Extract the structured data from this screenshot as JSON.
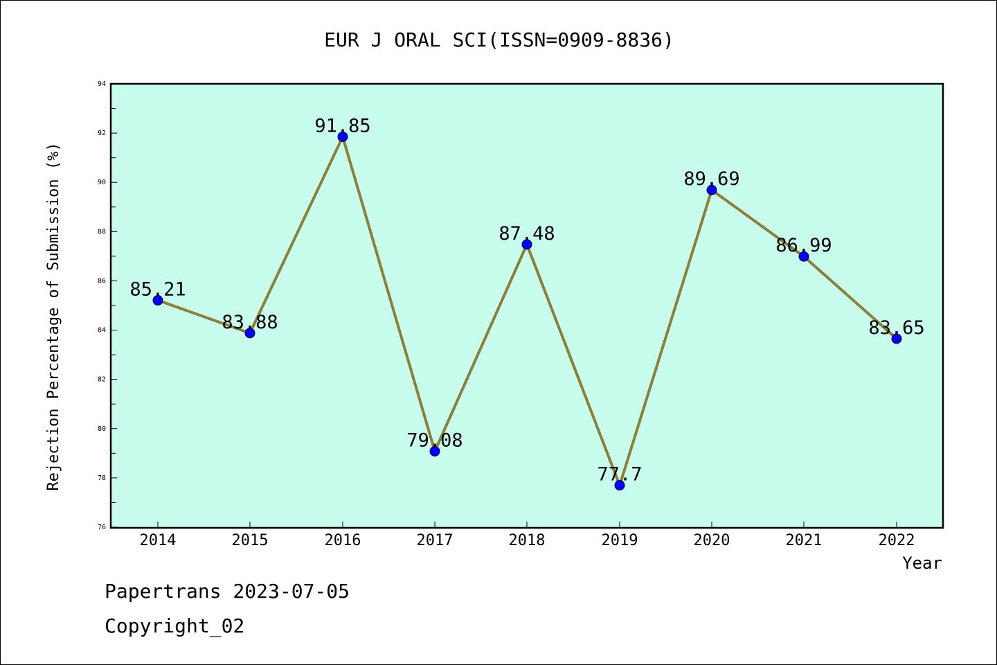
{
  "chart_data": {
    "type": "line",
    "title": "EUR J ORAL SCI(ISSN=0909-8836)",
    "xlabel": "Year",
    "ylabel": "Rejection Percentage of Submission (%)",
    "x": [
      "2014",
      "2015",
      "2016",
      "2017",
      "2018",
      "2019",
      "2020",
      "2021",
      "2022"
    ],
    "values": [
      85.21,
      83.88,
      91.85,
      79.08,
      87.48,
      77.7,
      89.69,
      86.99,
      83.65
    ],
    "data_labels": [
      "85.21",
      "83.88",
      "91.85",
      "79.08",
      "87.48",
      "77.7",
      "89.69",
      "86.99",
      "83.65"
    ],
    "ylim": [
      76,
      94
    ],
    "yticks": [
      "76",
      "78",
      "80",
      "82",
      "84",
      "86",
      "88",
      "90",
      "92",
      "94"
    ],
    "grid": false,
    "colors": {
      "plot_background": "#c8fced",
      "line": "#8b8038",
      "marker": "#0000ff"
    }
  },
  "footer": {
    "line1": "Papertrans 2023-07-05",
    "line2": "Copyright_02"
  }
}
